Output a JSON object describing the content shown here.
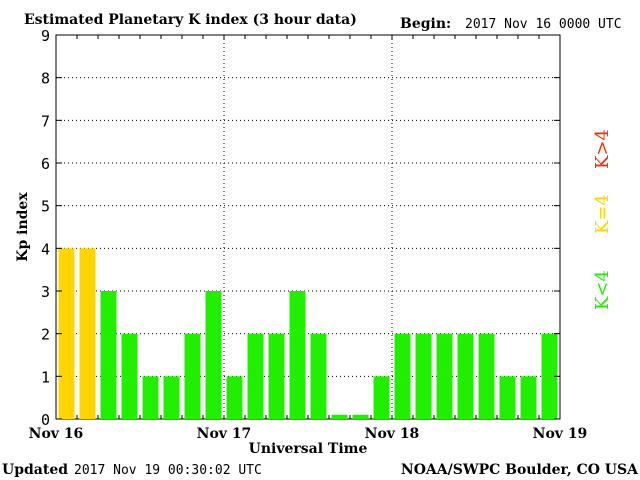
{
  "header": {
    "title": "Estimated Planetary K index (3 hour data)",
    "begin_label": "Begin:",
    "begin_value": "2017 Nov 16 0000 UTC"
  },
  "footer": {
    "updated_label": "Updated",
    "updated_value": "2017 Nov 19 00:30:02 UTC",
    "source": "NOAA/SWPC Boulder, CO USA"
  },
  "legend": {
    "high": {
      "label": "K>4",
      "color": "#ff2a00"
    },
    "equal": {
      "label": "K=4",
      "color": "#ffd400"
    },
    "low": {
      "label": "K<4",
      "color": "#22ee00"
    }
  },
  "chart_data": {
    "type": "bar",
    "ylabel": "Kp index",
    "xlabel": "Universal Time",
    "ylim": [
      0,
      9
    ],
    "yticks": [
      "0",
      "1",
      "2",
      "3",
      "4",
      "5",
      "6",
      "7",
      "8",
      "9"
    ],
    "xticks": [
      "Nov 16",
      "Nov 17",
      "Nov 18",
      "Nov 19"
    ],
    "grid": true,
    "interval_hours": 3,
    "values": [
      4,
      4,
      3,
      2,
      1,
      1,
      2,
      3,
      1,
      2,
      2,
      3,
      2,
      0.1,
      0.1,
      1,
      2,
      2,
      2,
      2,
      2,
      1,
      1,
      2
    ]
  }
}
